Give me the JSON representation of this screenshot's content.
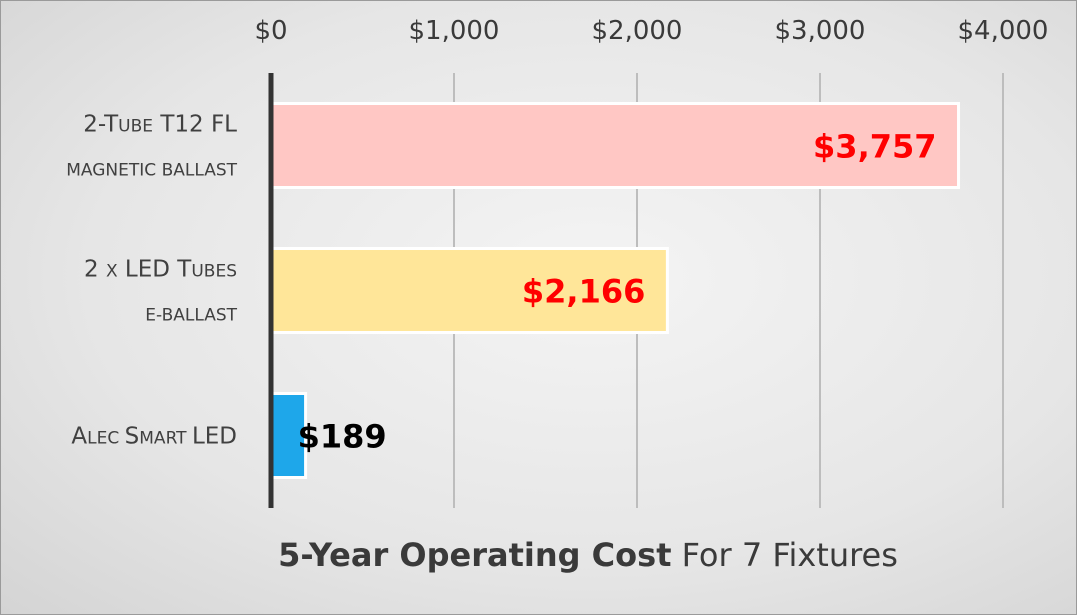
{
  "chart_data": {
    "type": "bar",
    "orientation": "horizontal",
    "title": {
      "bold": "5-Year Operating Cost",
      "normal": "For 7 Fixtures"
    },
    "xlim": [
      0,
      4000
    ],
    "x_ticks": [
      0,
      1000,
      2000,
      3000,
      4000
    ],
    "x_tick_labels": [
      "$0",
      "$1,000",
      "$2,000",
      "$3,000",
      "$4,000"
    ],
    "x_axis_position": "top",
    "grid": true,
    "legend": "none",
    "categories": [
      {
        "name": "2-Tube T12 FL magnetic ballast",
        "label_lines": [
          [
            {
              "t": "2-T",
              "s": "big"
            },
            {
              "t": "UBE",
              "s": "small"
            },
            {
              "t": " T12 FL",
              "s": "big"
            }
          ],
          [
            {
              "t": "MAGNETIC BALLAST",
              "s": "small"
            }
          ]
        ],
        "value": 3757,
        "value_label": "$3,757",
        "bar_color": "#ffc7c4",
        "label_color": "#ff0000",
        "label_position": "inside-end"
      },
      {
        "name": "2 x LED Tubes e-ballast",
        "label_lines": [
          [
            {
              "t": "2 ",
              "s": "big"
            },
            {
              "t": "X",
              "s": "small"
            },
            {
              "t": " LED T",
              "s": "big"
            },
            {
              "t": "UBES",
              "s": "small"
            }
          ],
          [
            {
              "t": "E-BALLAST",
              "s": "small"
            }
          ]
        ],
        "value": 2166,
        "value_label": "$2,166",
        "bar_color": "#ffe699",
        "label_color": "#ff0000",
        "label_position": "inside-end"
      },
      {
        "name": "Alec Smart LED",
        "label_lines": [
          [
            {
              "t": "A",
              "s": "big"
            },
            {
              "t": "LEC ",
              "s": "small"
            },
            {
              "t": "S",
              "s": "big"
            },
            {
              "t": "MART ",
              "s": "small"
            },
            {
              "t": "LED",
              "s": "big"
            }
          ]
        ],
        "value": 189,
        "value_label": "$189",
        "bar_color": "#1ea7ea",
        "label_color": "#000000",
        "label_position": "outside-end"
      }
    ],
    "colors": {
      "grid": "#bdbdbd",
      "axis_line": "#333333",
      "bar_border": "#ffffff"
    }
  }
}
